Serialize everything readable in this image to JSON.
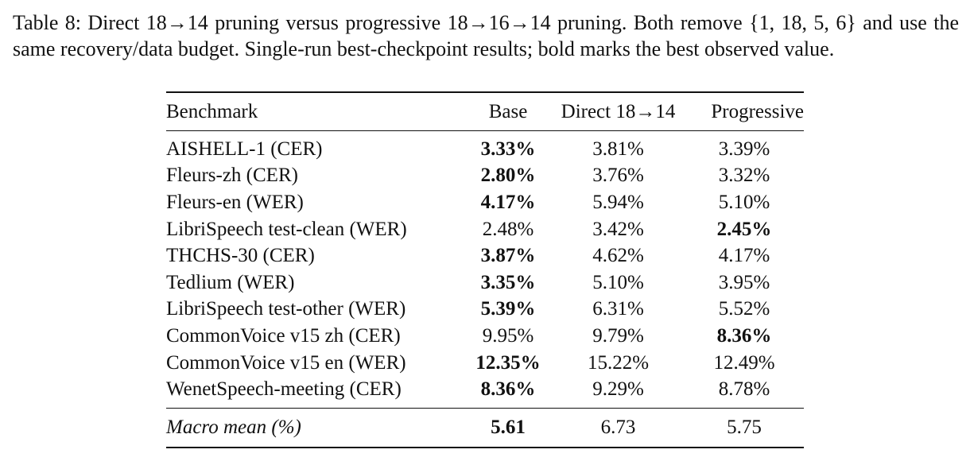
{
  "caption": "Table 8: Direct 18→14 pruning versus progressive 18→16→14 pruning. Both remove {1, 18, 5, 6} and use the same recovery/data budget. Single-run best-checkpoint results; bold marks the best observed value.",
  "table": {
    "headers": [
      "Benchmark",
      "Base",
      "Direct 18→14",
      "Progressive"
    ],
    "rows": [
      {
        "benchmark": "AISHELL-1 (CER)",
        "base": "3.33%",
        "direct": "3.81%",
        "progressive": "3.39%",
        "best": "base"
      },
      {
        "benchmark": "Fleurs-zh (CER)",
        "base": "2.80%",
        "direct": "3.76%",
        "progressive": "3.32%",
        "best": "base"
      },
      {
        "benchmark": "Fleurs-en (WER)",
        "base": "4.17%",
        "direct": "5.94%",
        "progressive": "5.10%",
        "best": "base"
      },
      {
        "benchmark": "LibriSpeech test-clean (WER)",
        "base": "2.48%",
        "direct": "3.42%",
        "progressive": "2.45%",
        "best": "progressive"
      },
      {
        "benchmark": "THCHS-30 (CER)",
        "base": "3.87%",
        "direct": "4.62%",
        "progressive": "4.17%",
        "best": "base"
      },
      {
        "benchmark": "Tedlium (WER)",
        "base": "3.35%",
        "direct": "5.10%",
        "progressive": "3.95%",
        "best": "base"
      },
      {
        "benchmark": "LibriSpeech test-other (WER)",
        "base": "5.39%",
        "direct": "6.31%",
        "progressive": "5.52%",
        "best": "base"
      },
      {
        "benchmark": "CommonVoice v15 zh (CER)",
        "base": "9.95%",
        "direct": "9.79%",
        "progressive": "8.36%",
        "best": "progressive"
      },
      {
        "benchmark": "CommonVoice v15 en (WER)",
        "base": "12.35%",
        "direct": "15.22%",
        "progressive": "12.49%",
        "best": "base"
      },
      {
        "benchmark": "WenetSpeech-meeting (CER)",
        "base": "8.36%",
        "direct": "9.29%",
        "progressive": "8.78%",
        "best": "base"
      }
    ],
    "footer": {
      "label": "Macro mean (%)",
      "base": "5.61",
      "direct": "6.73",
      "progressive": "5.75",
      "best": "base"
    }
  }
}
